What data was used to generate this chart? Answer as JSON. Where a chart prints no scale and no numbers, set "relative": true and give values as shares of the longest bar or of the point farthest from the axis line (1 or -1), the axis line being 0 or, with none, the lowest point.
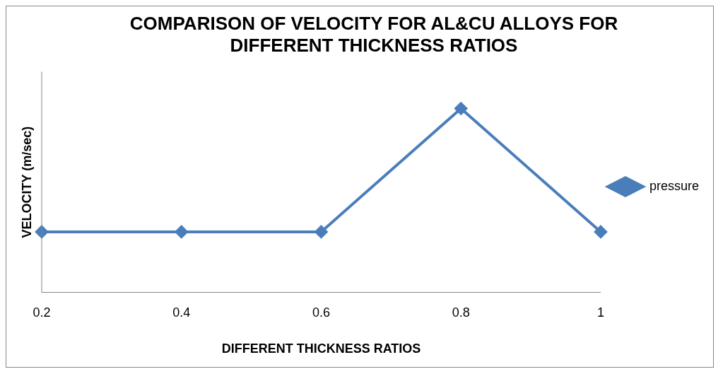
{
  "chart_data": {
    "type": "line",
    "title": "COMPARISON OF VELOCITY FOR AL&CU ALLOYS FOR DIFFERENT THICKNESS RATIOS",
    "xlabel": "DIFFERENT THICKNESS RATIOS",
    "ylabel": "VELOCITY (m/sec)",
    "categories": [
      "0.2",
      "0.4",
      "0.6",
      "0.8",
      "1"
    ],
    "series": [
      {
        "name": "pressure",
        "color": "#4a7ebb",
        "values": [
          0.33,
          0.33,
          0.33,
          1,
          0.33
        ]
      }
    ],
    "relative": true,
    "legend": "right",
    "marker": "diamond",
    "line_style": "solid"
  }
}
